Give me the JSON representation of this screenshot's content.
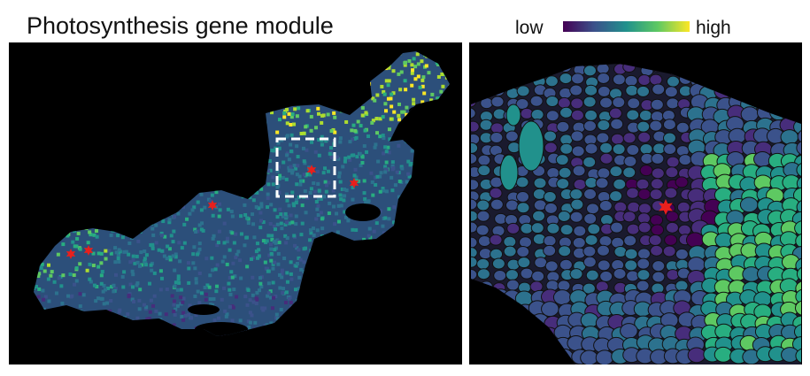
{
  "header": {
    "title": "Photosynthesis gene module"
  },
  "colorbar": {
    "low_label": "low",
    "high_label": "high"
  }
}
